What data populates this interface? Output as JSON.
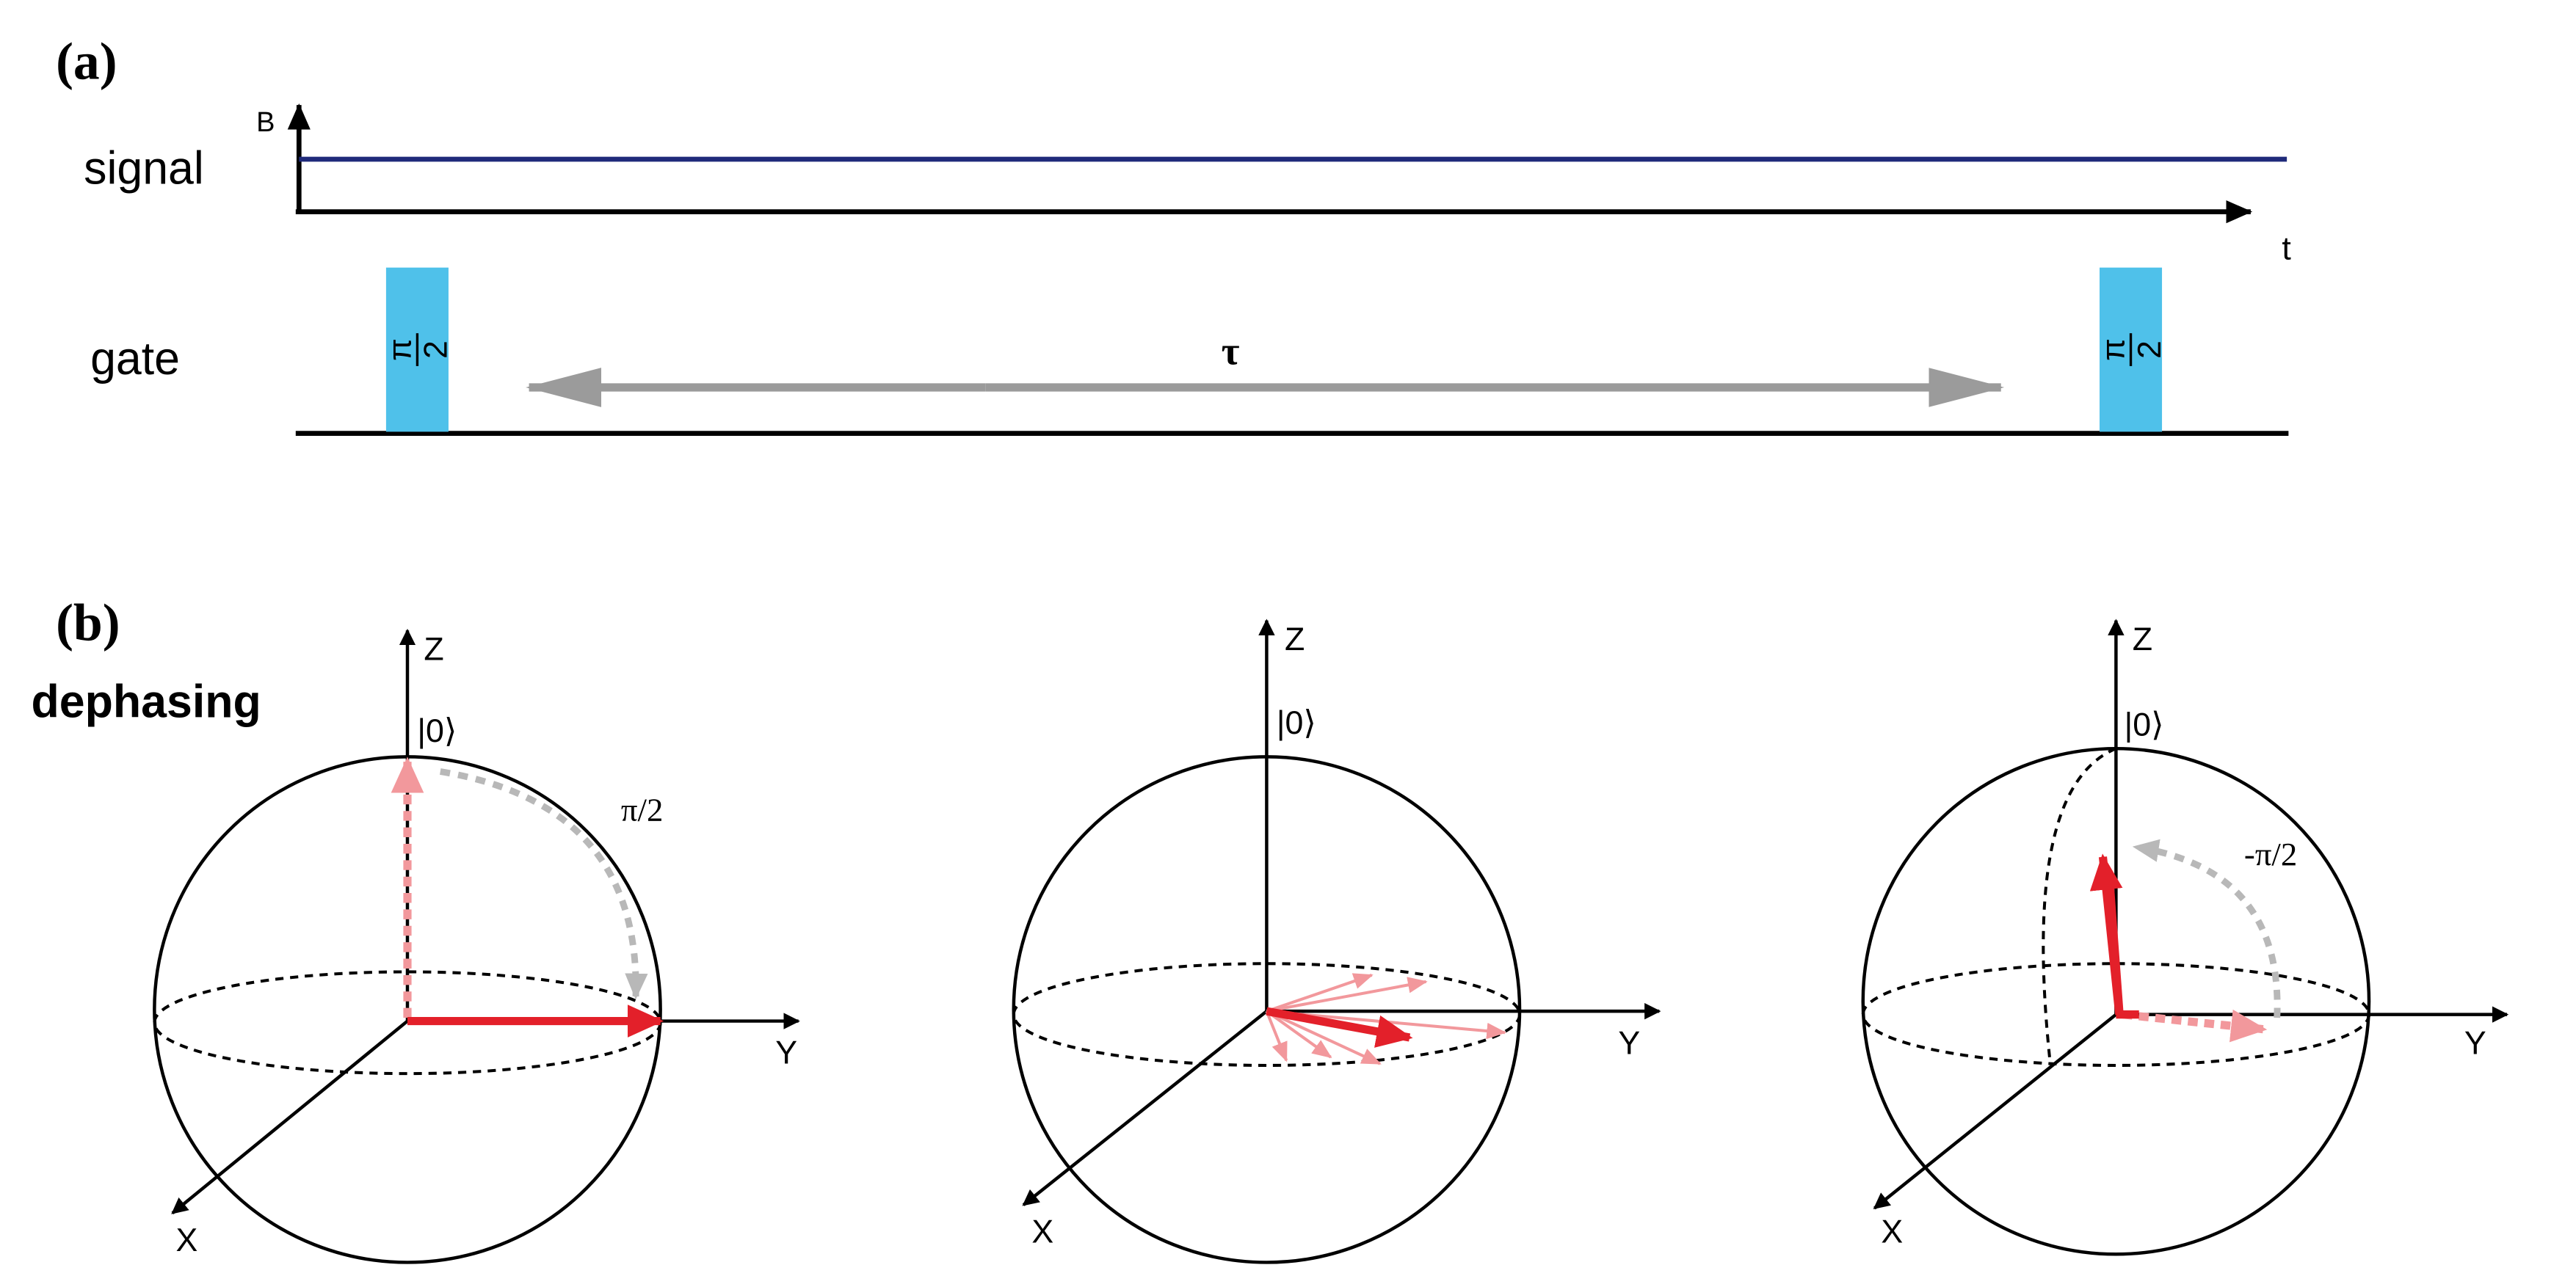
{
  "panel_a": {
    "label": "(a)",
    "signal_label": "signal",
    "gate_label": "gate",
    "y_axis_label": "B",
    "x_axis_label": "t",
    "pulse_left": {
      "numerator": "π",
      "denominator": "2"
    },
    "pulse_right": {
      "numerator": "π",
      "denominator": "2"
    },
    "interval_label": "τ"
  },
  "panel_b": {
    "label": "(b)",
    "process_label": "dephasing",
    "spheres": [
      {
        "z_label": "Z",
        "state_label": "|0⟩",
        "y_label": "Y",
        "x_label": "X",
        "rotation_label": "π/2"
      },
      {
        "z_label": "Z",
        "state_label": "|0⟩",
        "y_label": "Y",
        "x_label": "X"
      },
      {
        "z_label": "Z",
        "state_label": "|0⟩",
        "y_label": "Y",
        "x_label": "X",
        "rotation_label": "-π/2"
      }
    ]
  },
  "colors": {
    "signal_line": "#1f2a7a",
    "pulse_fill": "#4fc1ea",
    "interval_arrow": "#9b9b9b",
    "bloch_vector": "#e3202a",
    "bloch_vector_faded": "#f2989c",
    "rotation_arc": "#b8b8b8"
  }
}
